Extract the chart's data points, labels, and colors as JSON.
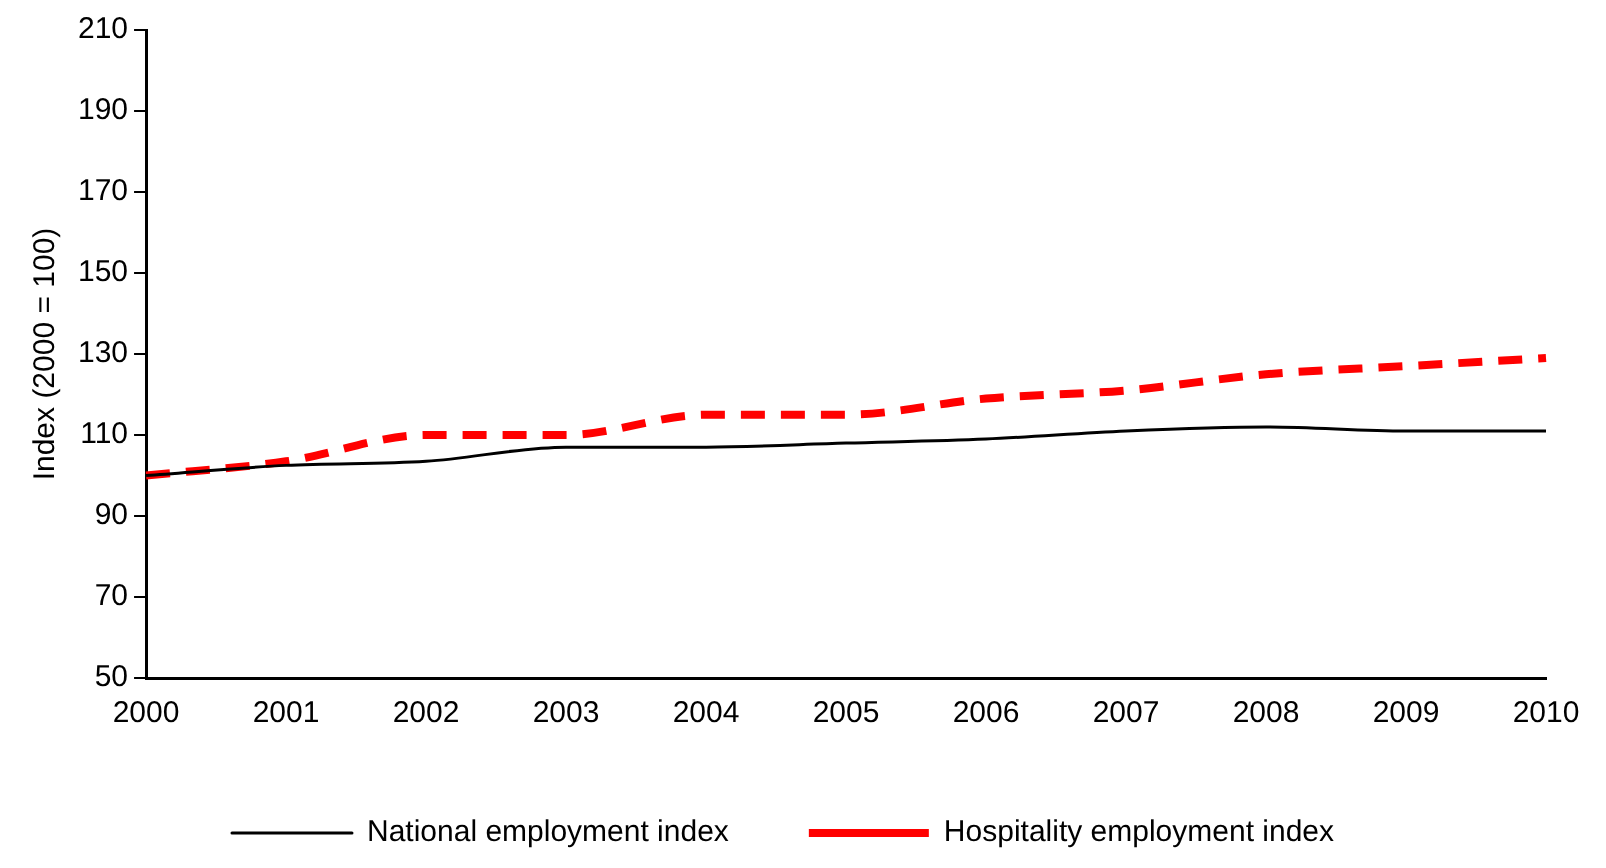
{
  "chart_data": {
    "type": "line",
    "ylabel": "Index (2000 = 100)",
    "categories": [
      "2000",
      "2001",
      "2002",
      "2003",
      "2004",
      "2005",
      "2006",
      "2007",
      "2008",
      "2009",
      "2010"
    ],
    "series": [
      {
        "name": "National employment index",
        "color": "#000000",
        "line_style": "solid",
        "values": [
          100,
          102.5,
          103.5,
          107,
          107,
          108,
          109,
          111,
          112,
          111,
          111
        ]
      },
      {
        "name": "Hospitality employment index",
        "color": "#ff0000",
        "line_style": "dashed",
        "values": [
          100,
          103.5,
          110,
          110,
          115,
          115,
          119,
          121,
          125,
          127,
          129
        ]
      }
    ],
    "ylim": [
      50,
      210
    ],
    "yticks": [
      50,
      70,
      90,
      110,
      130,
      150,
      170,
      190,
      210
    ],
    "grid": false,
    "legend": "bottom",
    "marker": "none"
  }
}
